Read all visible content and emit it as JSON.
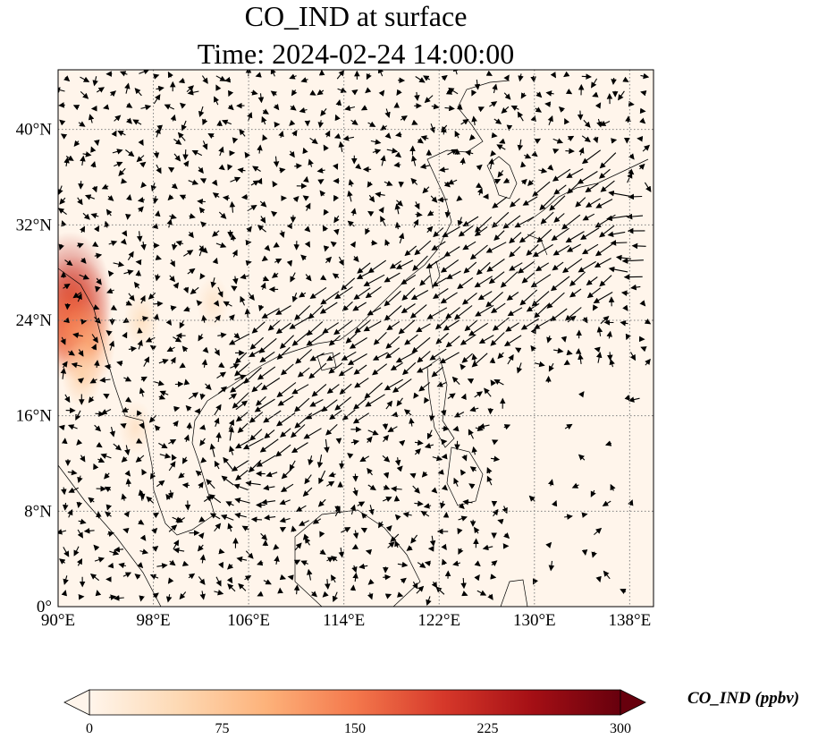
{
  "title": {
    "line1": "CO_IND at surface",
    "line2": "Time: 2024-02-24 14:00:00"
  },
  "map": {
    "lon_range": [
      90,
      140
    ],
    "lat_range": [
      0,
      45
    ],
    "lon_ticks": [
      {
        "value": 90,
        "label": "90°E"
      },
      {
        "value": 98,
        "label": "98°E"
      },
      {
        "value": 106,
        "label": "106°E"
      },
      {
        "value": 114,
        "label": "114°E"
      },
      {
        "value": 122,
        "label": "122°E"
      },
      {
        "value": 130,
        "label": "130°E"
      },
      {
        "value": 138,
        "label": "138°E"
      }
    ],
    "lat_ticks": [
      {
        "value": 0,
        "label": "0°"
      },
      {
        "value": 8,
        "label": "8°N"
      },
      {
        "value": 16,
        "label": "16°N"
      },
      {
        "value": 24,
        "label": "24°N"
      },
      {
        "value": 32,
        "label": "32°N"
      },
      {
        "value": 40,
        "label": "40°N"
      }
    ],
    "gridlines": "dotted",
    "background_color": "#fff5eb",
    "field_colormap": "OrRd",
    "hotspots": [
      {
        "lon": 91.0,
        "lat": 25.8,
        "value": 220
      },
      {
        "lon": 91.5,
        "lat": 24.5,
        "value": 180
      },
      {
        "lon": 90.8,
        "lat": 23.3,
        "value": 150
      },
      {
        "lon": 92.5,
        "lat": 22.0,
        "value": 110
      },
      {
        "lon": 92.0,
        "lat": 19.5,
        "value": 60
      },
      {
        "lon": 97.0,
        "lat": 24.0,
        "value": 40
      },
      {
        "lon": 103.0,
        "lat": 25.5,
        "value": 30
      },
      {
        "lon": 96.5,
        "lat": 15.0,
        "value": 35
      }
    ],
    "overlay": "wind-vectors"
  },
  "colorbar": {
    "label": "CO_IND (ppbv)",
    "min": 0,
    "max": 300,
    "extend": "both",
    "ticks": [
      "0",
      "75",
      "150",
      "225",
      "300"
    ],
    "colors": [
      "#fff5eb",
      "#fdd9b4",
      "#fdb27a",
      "#f4784c",
      "#d6382a",
      "#a50f15",
      "#67000d"
    ]
  }
}
